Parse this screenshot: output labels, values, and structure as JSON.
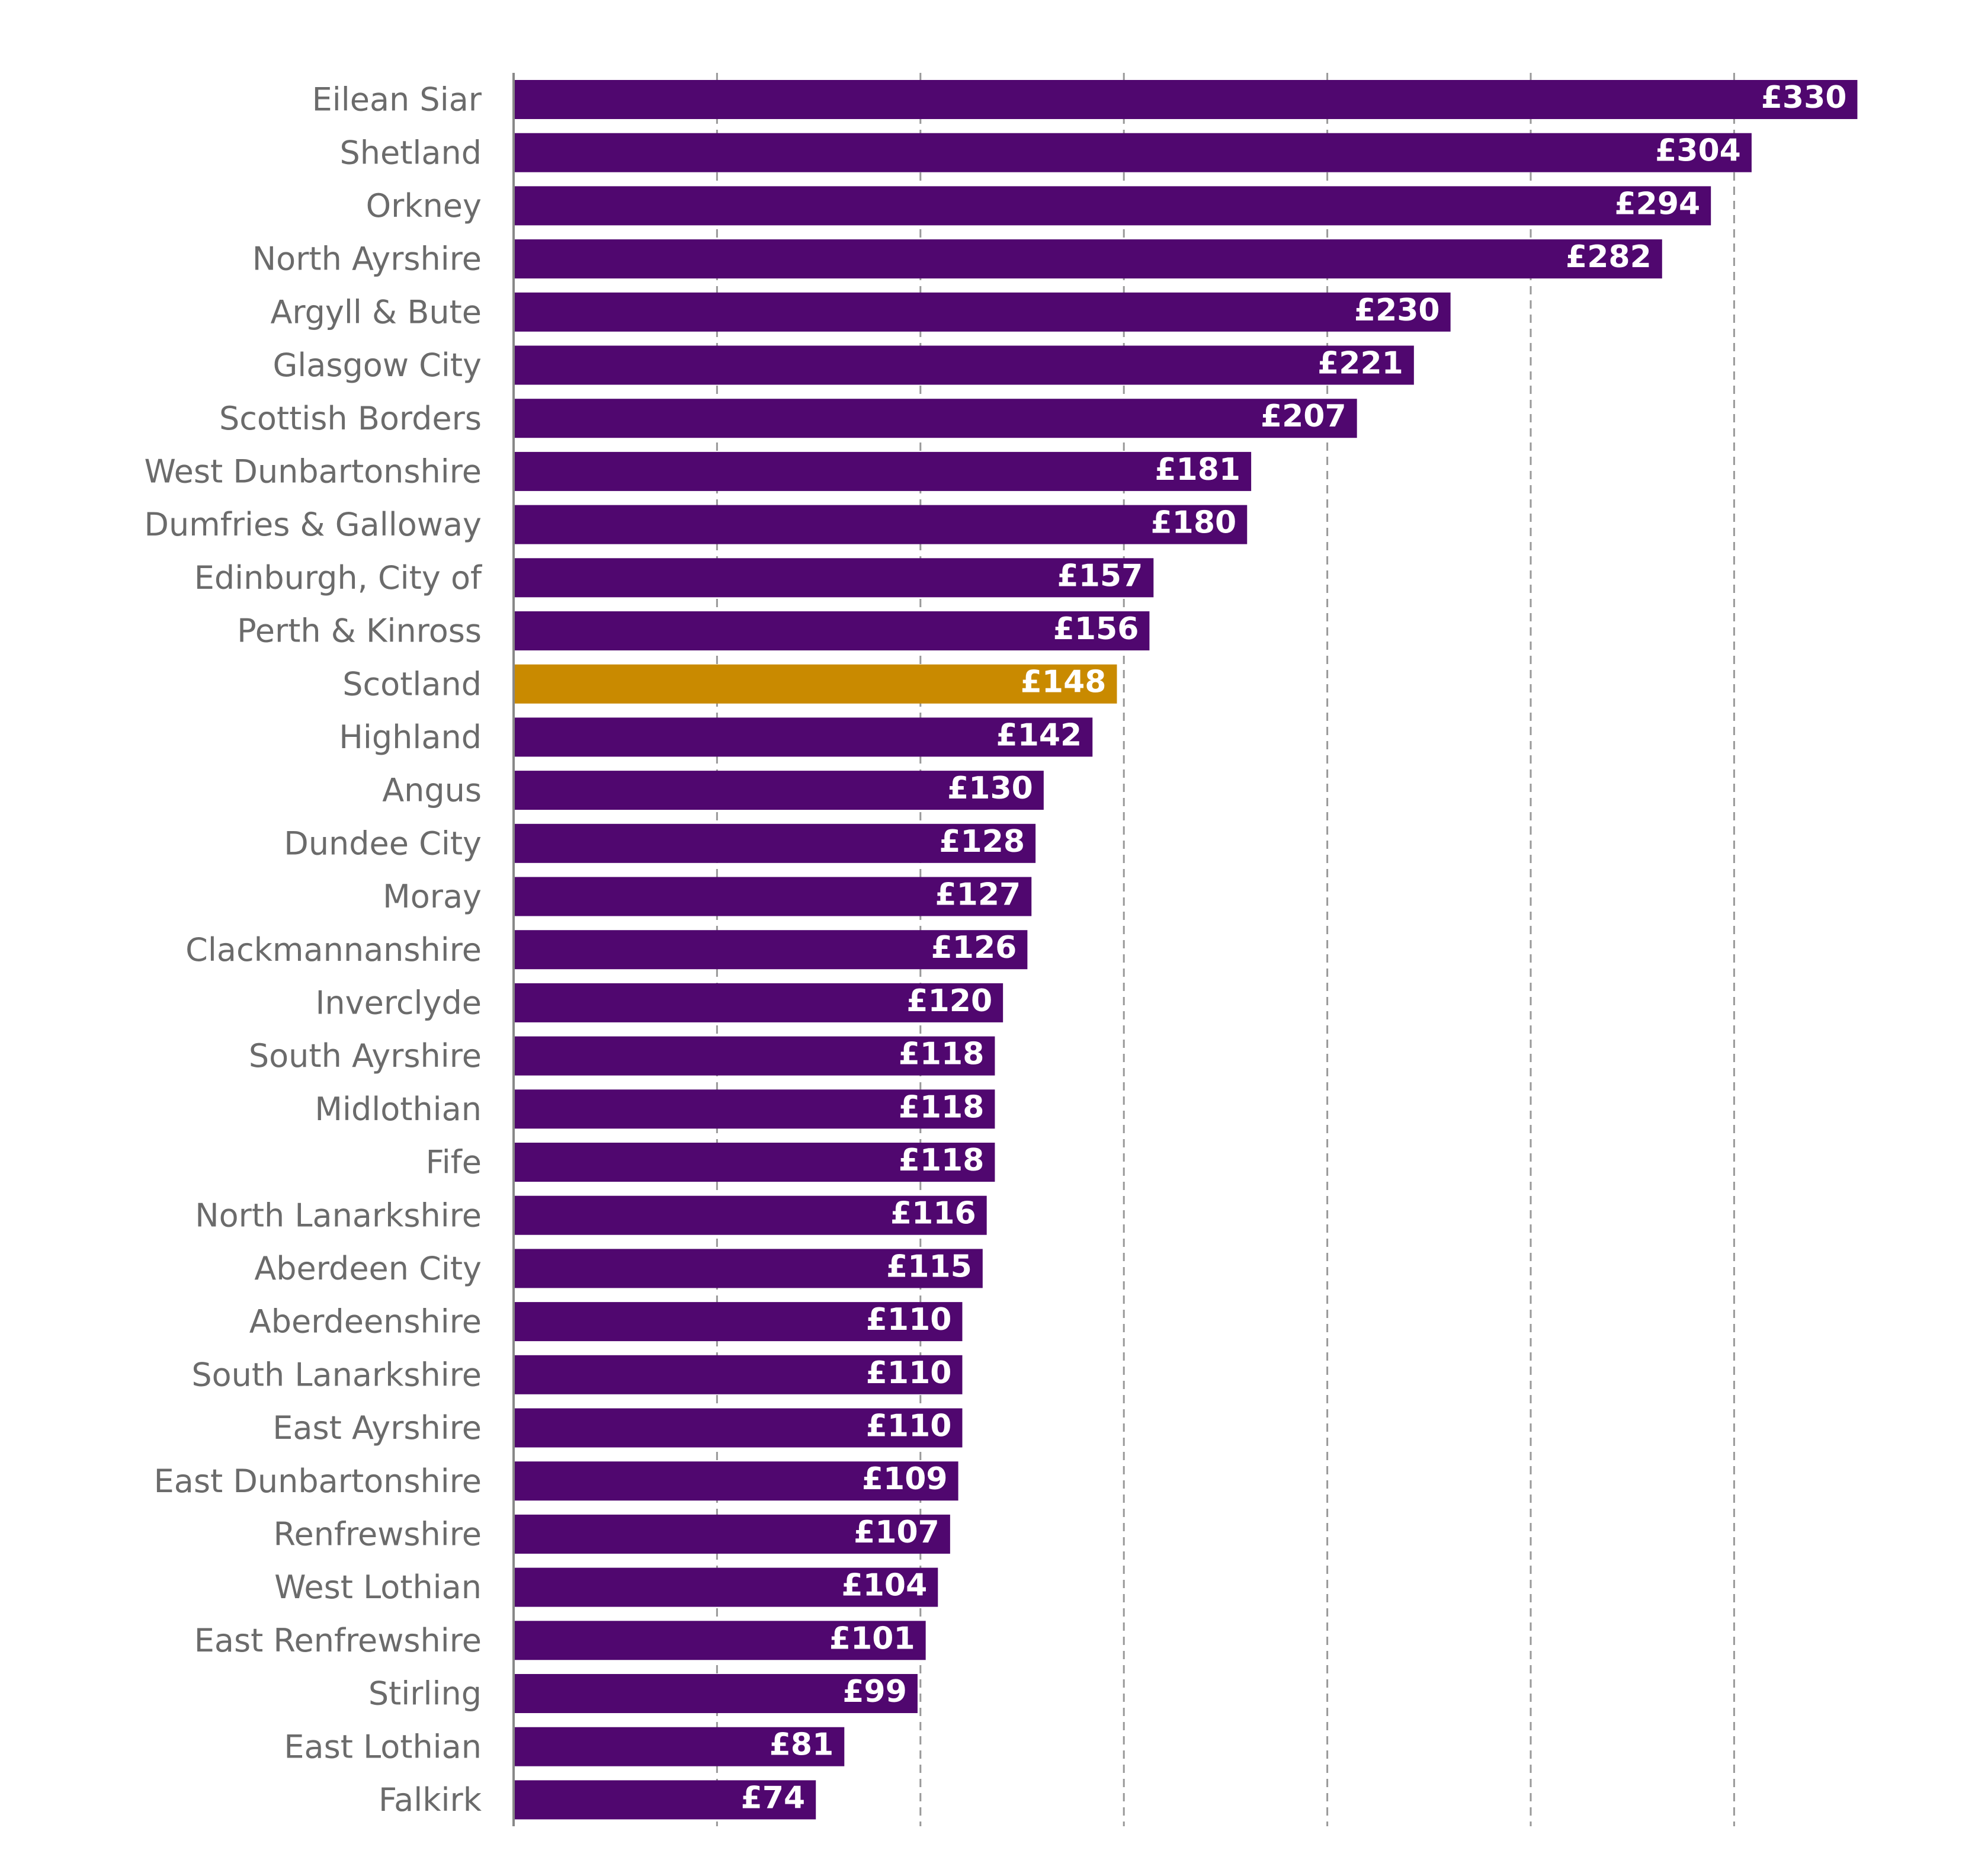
{
  "chart_data": {
    "type": "hbar",
    "categories": [
      "Eilean Siar",
      "Shetland",
      "Orkney",
      "North Ayrshire",
      "Argyll & Bute",
      "Glasgow City",
      "Scottish Borders",
      "West Dunbartonshire",
      "Dumfries & Galloway",
      "Edinburgh, City of",
      "Perth & Kinross",
      "Scotland",
      "Highland",
      "Angus",
      "Dundee City",
      "Moray",
      "Clackmannanshire",
      "Inverclyde",
      "South Ayrshire",
      "Midlothian",
      "Fife",
      "North Lanarkshire",
      "Aberdeen City",
      "Aberdeenshire",
      "South Lanarkshire",
      "East Ayrshire",
      "East Dunbartonshire",
      "Renfrewshire",
      "West Lothian",
      "East Renfrewshire",
      "Stirling",
      "East Lothian",
      "Falkirk"
    ],
    "values": [
      330,
      304,
      294,
      282,
      230,
      221,
      207,
      181,
      180,
      157,
      156,
      148,
      142,
      130,
      128,
      127,
      126,
      120,
      118,
      118,
      118,
      116,
      115,
      110,
      110,
      110,
      109,
      107,
      104,
      101,
      99,
      81,
      74
    ],
    "value_labels": [
      "£330",
      "£304",
      "£294",
      "£282",
      "£230",
      "£221",
      "£207",
      "£181",
      "£180",
      "£157",
      "£156",
      "£148",
      "£142",
      "£130",
      "£128",
      "£127",
      "£126",
      "£120",
      "£118",
      "£118",
      "£118",
      "£116",
      "£115",
      "£110",
      "£110",
      "£110",
      "£109",
      "£107",
      "£104",
      "£101",
      "£99",
      "£81",
      "£74"
    ],
    "colors": [
      "#50076f",
      "#50076f",
      "#50076f",
      "#50076f",
      "#50076f",
      "#50076f",
      "#50076f",
      "#50076f",
      "#50076f",
      "#50076f",
      "#50076f",
      "#c98a00",
      "#50076f",
      "#50076f",
      "#50076f",
      "#50076f",
      "#50076f",
      "#50076f",
      "#50076f",
      "#50076f",
      "#50076f",
      "#50076f",
      "#50076f",
      "#50076f",
      "#50076f",
      "#50076f",
      "#50076f",
      "#50076f",
      "#50076f",
      "#50076f",
      "#50076f",
      "#50076f",
      "#50076f"
    ],
    "xlim": [
      0,
      350
    ],
    "xticks": [
      0,
      50,
      100,
      150,
      200,
      250,
      300
    ],
    "grid": true
  }
}
